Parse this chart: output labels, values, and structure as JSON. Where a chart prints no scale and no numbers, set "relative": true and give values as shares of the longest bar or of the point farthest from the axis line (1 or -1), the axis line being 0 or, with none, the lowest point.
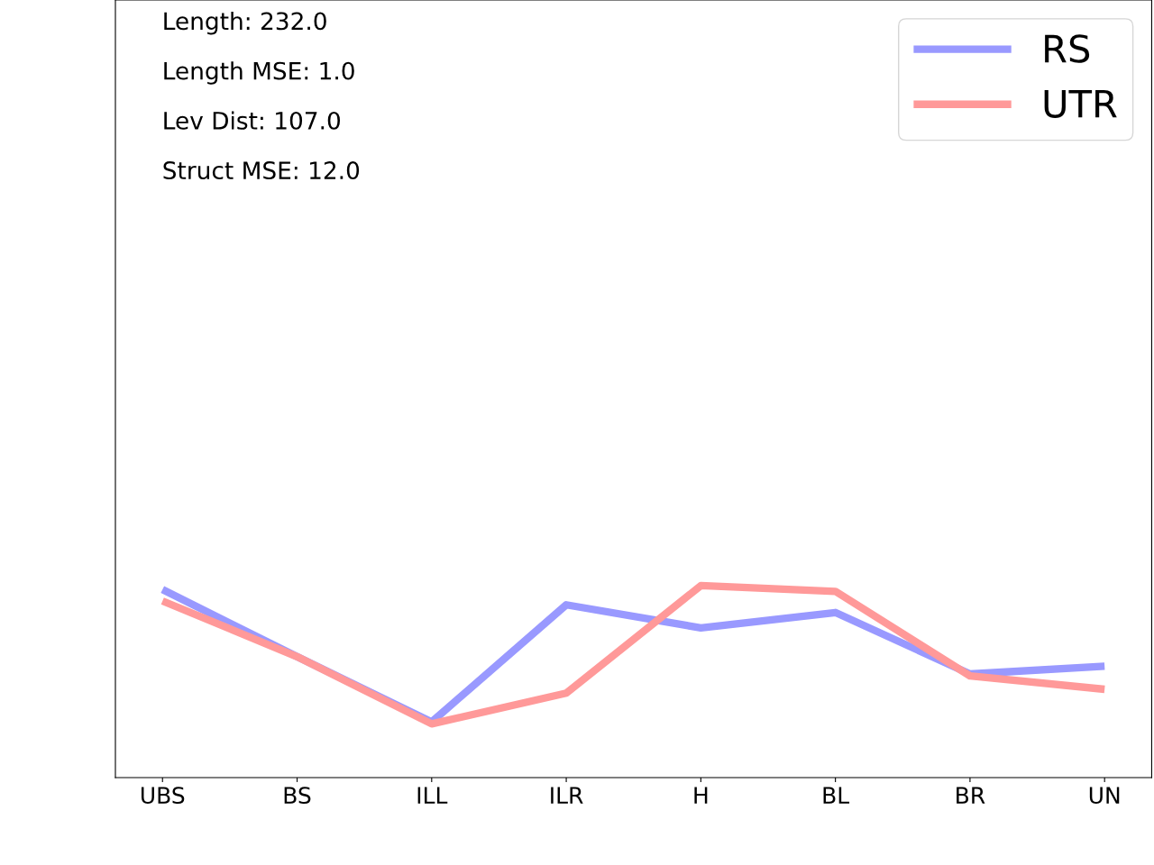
{
  "chart_data": {
    "type": "line",
    "relative": true,
    "categories": [
      "UBS",
      "BS",
      "ILL",
      "ILR",
      "H",
      "BL",
      "BR",
      "UN"
    ],
    "series": [
      {
        "name": "RS",
        "color": "#9999ff",
        "values": [
          0.98,
          0.63,
          0.29,
          0.9,
          0.78,
          0.86,
          0.54,
          0.58
        ]
      },
      {
        "name": "UTR",
        "color": "#ff9999",
        "values": [
          0.92,
          0.63,
          0.28,
          0.44,
          1.0,
          0.97,
          0.53,
          0.46
        ]
      }
    ],
    "annotations": [
      "Length: 232.0",
      "Length MSE: 1.0",
      "Lev Dist: 107.0",
      "Struct MSE: 12.0"
    ],
    "legend": "top right",
    "grid": false,
    "marker": "none",
    "line_style": "solid"
  }
}
